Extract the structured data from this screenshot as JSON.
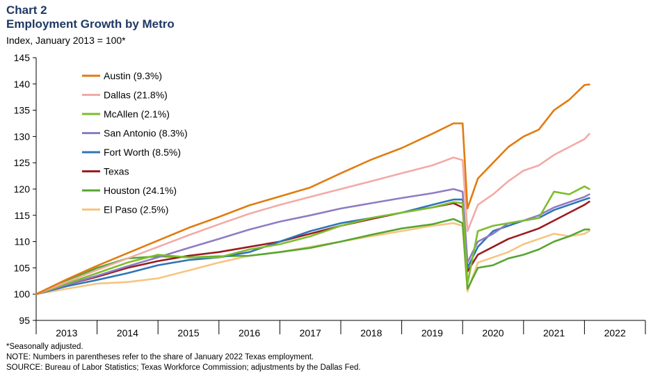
{
  "header": {
    "label": "Chart 2",
    "title": "Employment Growth by Metro",
    "subtitle": "Index, January 2013 = 100*"
  },
  "footnotes": {
    "note1": "*Seasonally adjusted.",
    "note2": "NOTE: Numbers in parentheses refer to the share of January 2022 Texas employment.",
    "source": "SOURCE: Bureau of Labor Statistics; Texas Workforce Commission; adjustments by the Dallas Fed."
  },
  "chart_data": {
    "type": "line",
    "title": "Employment Growth by Metro",
    "ylabel": "Index, January 2013 = 100*",
    "xlabel": "",
    "ylim": [
      95,
      145
    ],
    "yticks": [
      95,
      100,
      105,
      110,
      115,
      120,
      125,
      130,
      135,
      140,
      145
    ],
    "xlim": [
      2013.0,
      2023.0
    ],
    "year_labels": [
      "2013",
      "2014",
      "2015",
      "2016",
      "2017",
      "2018",
      "2019",
      "2020",
      "2021",
      "2022"
    ],
    "legend_position": "top-left",
    "series": [
      {
        "name": "Austin (9.3%)",
        "color": "#e07b10",
        "points": [
          [
            2013.0,
            100
          ],
          [
            2013.5,
            102.8
          ],
          [
            2014.0,
            105.4
          ],
          [
            2014.5,
            107.8
          ],
          [
            2015.0,
            110.2
          ],
          [
            2015.5,
            112.6
          ],
          [
            2016.0,
            114.7
          ],
          [
            2016.5,
            116.9
          ],
          [
            2017.0,
            118.6
          ],
          [
            2017.5,
            120.3
          ],
          [
            2018.0,
            123.0
          ],
          [
            2018.5,
            125.6
          ],
          [
            2019.0,
            127.8
          ],
          [
            2019.5,
            130.5
          ],
          [
            2019.85,
            132.5
          ],
          [
            2020.0,
            132.5
          ],
          [
            2020.08,
            116.3
          ],
          [
            2020.25,
            122.0
          ],
          [
            2020.5,
            125.0
          ],
          [
            2020.75,
            128.0
          ],
          [
            2021.0,
            130.0
          ],
          [
            2021.25,
            131.3
          ],
          [
            2021.5,
            135.0
          ],
          [
            2021.75,
            137.0
          ],
          [
            2022.0,
            139.8
          ],
          [
            2022.08,
            139.9
          ]
        ]
      },
      {
        "name": "Dallas (21.8%)",
        "color": "#f2aaa6",
        "points": [
          [
            2013.0,
            100
          ],
          [
            2013.5,
            102.3
          ],
          [
            2014.0,
            104.6
          ],
          [
            2014.5,
            106.8
          ],
          [
            2015.0,
            109.0
          ],
          [
            2015.5,
            111.2
          ],
          [
            2016.0,
            113.3
          ],
          [
            2016.5,
            115.3
          ],
          [
            2017.0,
            117.0
          ],
          [
            2017.5,
            118.5
          ],
          [
            2018.0,
            120.0
          ],
          [
            2018.5,
            121.5
          ],
          [
            2019.0,
            123.0
          ],
          [
            2019.5,
            124.5
          ],
          [
            2019.85,
            126.0
          ],
          [
            2020.0,
            125.5
          ],
          [
            2020.08,
            112.0
          ],
          [
            2020.25,
            117.0
          ],
          [
            2020.5,
            119.0
          ],
          [
            2020.75,
            121.5
          ],
          [
            2021.0,
            123.5
          ],
          [
            2021.25,
            124.5
          ],
          [
            2021.5,
            126.5
          ],
          [
            2021.75,
            128.0
          ],
          [
            2022.0,
            129.5
          ],
          [
            2022.08,
            130.5
          ]
        ]
      },
      {
        "name": "McAllen (2.1%)",
        "color": "#7dbd2a",
        "points": [
          [
            2013.0,
            100
          ],
          [
            2013.5,
            102.0
          ],
          [
            2014.0,
            104.0
          ],
          [
            2014.5,
            106.0
          ],
          [
            2015.0,
            107.5
          ],
          [
            2015.5,
            107.0
          ],
          [
            2016.0,
            107.0
          ],
          [
            2016.5,
            108.5
          ],
          [
            2017.0,
            109.5
          ],
          [
            2017.5,
            111.0
          ],
          [
            2018.0,
            113.0
          ],
          [
            2018.5,
            114.5
          ],
          [
            2019.0,
            115.5
          ],
          [
            2019.5,
            116.5
          ],
          [
            2019.85,
            117.5
          ],
          [
            2020.0,
            117.3
          ],
          [
            2020.08,
            102.0
          ],
          [
            2020.25,
            112.0
          ],
          [
            2020.5,
            113.0
          ],
          [
            2020.75,
            113.5
          ],
          [
            2021.0,
            114.0
          ],
          [
            2021.25,
            114.5
          ],
          [
            2021.5,
            119.5
          ],
          [
            2021.75,
            119.0
          ],
          [
            2022.0,
            120.5
          ],
          [
            2022.08,
            120.0
          ]
        ]
      },
      {
        "name": "San Antonio (8.3%)",
        "color": "#8e7cc3",
        "points": [
          [
            2013.0,
            100
          ],
          [
            2013.5,
            101.8
          ],
          [
            2014.0,
            103.5
          ],
          [
            2014.5,
            105.3
          ],
          [
            2015.0,
            107.0
          ],
          [
            2015.5,
            108.8
          ],
          [
            2016.0,
            110.5
          ],
          [
            2016.5,
            112.3
          ],
          [
            2017.0,
            113.8
          ],
          [
            2017.5,
            115.0
          ],
          [
            2018.0,
            116.3
          ],
          [
            2018.5,
            117.3
          ],
          [
            2019.0,
            118.3
          ],
          [
            2019.5,
            119.2
          ],
          [
            2019.85,
            120.0
          ],
          [
            2020.0,
            119.5
          ],
          [
            2020.08,
            106.0
          ],
          [
            2020.25,
            110.0
          ],
          [
            2020.5,
            111.5
          ],
          [
            2020.75,
            113.5
          ],
          [
            2021.0,
            114.0
          ],
          [
            2021.25,
            115.0
          ],
          [
            2021.5,
            116.5
          ],
          [
            2021.75,
            117.5
          ],
          [
            2022.0,
            118.5
          ],
          [
            2022.08,
            119.0
          ]
        ]
      },
      {
        "name": "Fort Worth (8.5%)",
        "color": "#2e75b6",
        "points": [
          [
            2013.0,
            100
          ],
          [
            2013.5,
            101.5
          ],
          [
            2014.0,
            102.7
          ],
          [
            2014.5,
            104.0
          ],
          [
            2015.0,
            105.5
          ],
          [
            2015.5,
            106.5
          ],
          [
            2016.0,
            107.0
          ],
          [
            2016.5,
            108.0
          ],
          [
            2017.0,
            110.0
          ],
          [
            2017.5,
            112.0
          ],
          [
            2018.0,
            113.5
          ],
          [
            2018.5,
            114.5
          ],
          [
            2019.0,
            115.5
          ],
          [
            2019.5,
            117.0
          ],
          [
            2019.85,
            118.0
          ],
          [
            2020.0,
            118.0
          ],
          [
            2020.08,
            105.0
          ],
          [
            2020.25,
            109.0
          ],
          [
            2020.5,
            112.0
          ],
          [
            2020.75,
            113.0
          ],
          [
            2021.0,
            114.0
          ],
          [
            2021.25,
            114.5
          ],
          [
            2021.5,
            116.0
          ],
          [
            2021.75,
            117.0
          ],
          [
            2022.0,
            118.0
          ],
          [
            2022.08,
            118.3
          ]
        ]
      },
      {
        "name": "Texas",
        "color": "#9b1b1f",
        "points": [
          [
            2013.0,
            100
          ],
          [
            2013.5,
            101.8
          ],
          [
            2014.0,
            103.3
          ],
          [
            2014.5,
            105.0
          ],
          [
            2015.0,
            106.3
          ],
          [
            2015.5,
            107.3
          ],
          [
            2016.0,
            108.0
          ],
          [
            2016.5,
            109.0
          ],
          [
            2017.0,
            110.0
          ],
          [
            2017.5,
            111.5
          ],
          [
            2018.0,
            113.0
          ],
          [
            2018.5,
            114.3
          ],
          [
            2019.0,
            115.5
          ],
          [
            2019.5,
            116.5
          ],
          [
            2019.85,
            117.3
          ],
          [
            2020.0,
            116.5
          ],
          [
            2020.08,
            104.3
          ],
          [
            2020.25,
            107.5
          ],
          [
            2020.5,
            109.0
          ],
          [
            2020.75,
            110.5
          ],
          [
            2021.0,
            111.5
          ],
          [
            2021.25,
            112.5
          ],
          [
            2021.5,
            114.0
          ],
          [
            2021.75,
            115.5
          ],
          [
            2022.0,
            117.0
          ],
          [
            2022.08,
            117.6
          ]
        ]
      },
      {
        "name": "Houston (24.1%)",
        "color": "#55a630",
        "points": [
          [
            2013.0,
            100
          ],
          [
            2013.5,
            102.5
          ],
          [
            2014.0,
            105.0
          ],
          [
            2014.5,
            106.8
          ],
          [
            2015.0,
            107.2
          ],
          [
            2015.5,
            107.0
          ],
          [
            2016.0,
            107.2
          ],
          [
            2016.5,
            107.3
          ],
          [
            2017.0,
            108.0
          ],
          [
            2017.5,
            108.8
          ],
          [
            2018.0,
            110.0
          ],
          [
            2018.5,
            111.3
          ],
          [
            2019.0,
            112.5
          ],
          [
            2019.5,
            113.3
          ],
          [
            2019.85,
            114.3
          ],
          [
            2020.0,
            113.5
          ],
          [
            2020.08,
            101.0
          ],
          [
            2020.25,
            105.0
          ],
          [
            2020.5,
            105.5
          ],
          [
            2020.75,
            106.8
          ],
          [
            2021.0,
            107.5
          ],
          [
            2021.25,
            108.5
          ],
          [
            2021.5,
            110.0
          ],
          [
            2021.75,
            111.0
          ],
          [
            2022.0,
            112.3
          ],
          [
            2022.08,
            112.3
          ]
        ]
      },
      {
        "name": "El Paso (2.5%)",
        "color": "#f6c57f",
        "points": [
          [
            2013.0,
            100
          ],
          [
            2013.5,
            101.0
          ],
          [
            2014.0,
            102.0
          ],
          [
            2014.5,
            102.3
          ],
          [
            2015.0,
            103.0
          ],
          [
            2015.5,
            104.5
          ],
          [
            2016.0,
            106.0
          ],
          [
            2016.5,
            107.3
          ],
          [
            2017.0,
            108.0
          ],
          [
            2017.5,
            109.0
          ],
          [
            2018.0,
            110.0
          ],
          [
            2018.5,
            111.0
          ],
          [
            2019.0,
            112.0
          ],
          [
            2019.5,
            113.0
          ],
          [
            2019.85,
            113.5
          ],
          [
            2020.0,
            113.0
          ],
          [
            2020.08,
            100.5
          ],
          [
            2020.25,
            106.0
          ],
          [
            2020.5,
            107.0
          ],
          [
            2020.75,
            108.0
          ],
          [
            2021.0,
            109.5
          ],
          [
            2021.25,
            110.5
          ],
          [
            2021.5,
            111.5
          ],
          [
            2021.75,
            111.0
          ],
          [
            2022.0,
            111.5
          ],
          [
            2022.08,
            112.0
          ]
        ]
      }
    ]
  }
}
